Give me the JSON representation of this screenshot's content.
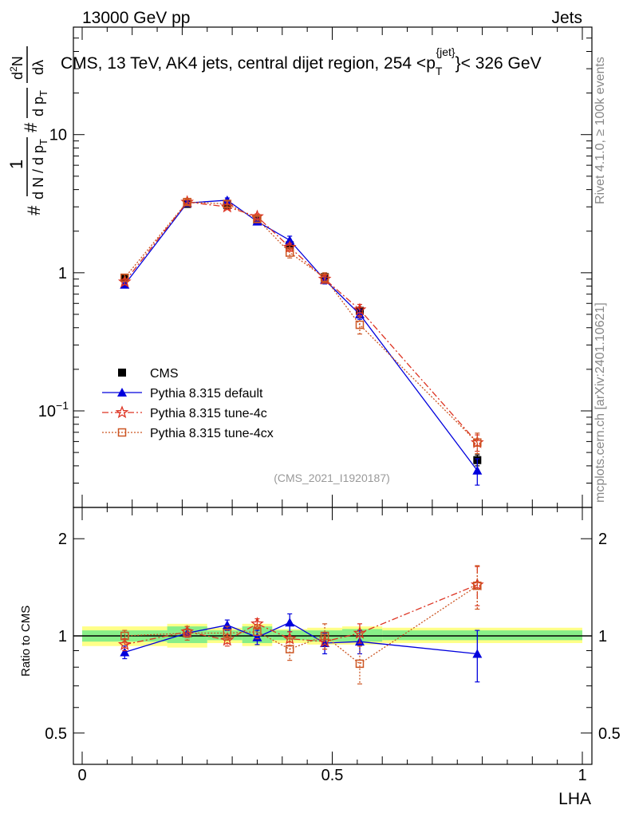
{
  "header": {
    "energy_label": "13000 GeV pp",
    "category_label": "Jets",
    "title_prefix": "CMS, 13 TeV, AK4 jets, central dijet region, 254 <p",
    "title_sub": "T",
    "title_sup": "{jet}",
    "title_suffix": "}< 326 GeV",
    "analysis_id": "(CMS_2021_I1920187)",
    "rivet_label": "Rivet 4.1.0, ≥ 100k events",
    "mcplots_label": "mcplots.cern.ch [arXiv:2401.10621]"
  },
  "colors": {
    "cms": "#000000",
    "default": "#0000dd",
    "tune4c": "#dd3322",
    "tune4cx": "#cc5522",
    "band_inner": "#88ee88",
    "band_outer": "#ffff88"
  },
  "chart_data": [
    {
      "type": "scatter",
      "name": "main",
      "yscale": "log",
      "xlim": [
        0,
        1
      ],
      "ylim": [
        0.02,
        60
      ],
      "ylabel_parts": [
        "#",
        "1",
        "d N / d p",
        "T",
        "#",
        "d p",
        "T",
        "d",
        "2",
        "N",
        "dλ"
      ],
      "y_ticks": [
        {
          "value": 0.1,
          "label": "10",
          "sup": "−1"
        },
        {
          "value": 1,
          "label": "1",
          "sup": ""
        },
        {
          "value": 10,
          "label": "10",
          "sup": ""
        }
      ],
      "x": [
        0.085,
        0.21,
        0.29,
        0.35,
        0.415,
        0.485,
        0.555,
        0.79
      ],
      "series": [
        {
          "name": "CMS",
          "key": "cms",
          "marker": "square",
          "line": "none",
          "values": [
            0.92,
            3.15,
            3.1,
            2.38,
            1.58,
            0.93,
            0.53,
            0.044
          ],
          "err_lo": [
            0.05,
            0.12,
            0.12,
            0.1,
            0.08,
            0.05,
            0.03,
            0.004
          ],
          "err_hi": [
            0.05,
            0.12,
            0.12,
            0.1,
            0.08,
            0.05,
            0.03,
            0.004
          ]
        },
        {
          "name": "Pythia 8.315 default",
          "key": "default",
          "marker": "triangle",
          "line": "solid",
          "values": [
            0.82,
            3.2,
            3.35,
            2.35,
            1.72,
            0.89,
            0.5,
            0.037
          ],
          "err_lo": [
            0.04,
            0.12,
            0.13,
            0.1,
            0.12,
            0.06,
            0.04,
            0.008
          ],
          "err_hi": [
            0.04,
            0.12,
            0.13,
            0.1,
            0.12,
            0.06,
            0.04,
            0.008
          ]
        },
        {
          "name": "Pythia 8.315 tune-4c",
          "key": "tune4c",
          "marker": "star",
          "line": "dashdot",
          "values": [
            0.86,
            3.25,
            3.0,
            2.55,
            1.53,
            0.9,
            0.54,
            0.059
          ],
          "err_lo": [
            0.04,
            0.12,
            0.12,
            0.12,
            0.1,
            0.06,
            0.05,
            0.008
          ],
          "err_hi": [
            0.04,
            0.12,
            0.12,
            0.12,
            0.1,
            0.06,
            0.05,
            0.008
          ]
        },
        {
          "name": "Pythia 8.315 tune-4cx",
          "key": "tune4cx",
          "marker": "open-square",
          "line": "dotted",
          "values": [
            0.92,
            3.25,
            3.15,
            2.45,
            1.4,
            0.92,
            0.42,
            0.059
          ],
          "err_lo": [
            0.05,
            0.15,
            0.15,
            0.12,
            0.12,
            0.08,
            0.06,
            0.01
          ],
          "err_hi": [
            0.05,
            0.15,
            0.15,
            0.12,
            0.12,
            0.08,
            0.06,
            0.01
          ]
        }
      ],
      "legend": {
        "position": "lower-left",
        "entries": [
          "CMS",
          "Pythia 8.315 default",
          "Pythia 8.315 tune-4c",
          "Pythia 8.315 tune-4cx"
        ]
      }
    },
    {
      "type": "scatter",
      "name": "ratio",
      "yscale": "log",
      "xlim": [
        0,
        1
      ],
      "ylim": [
        0.4,
        2.5
      ],
      "ylabel": "Ratio to CMS",
      "xlabel": "LHA",
      "y_ticks": [
        {
          "value": 0.5,
          "label": "0.5"
        },
        {
          "value": 1,
          "label": "1"
        },
        {
          "value": 2,
          "label": "2"
        }
      ],
      "x_ticks": [
        {
          "value": 0,
          "label": "0"
        },
        {
          "value": 0.5,
          "label": "0.5"
        },
        {
          "value": 1,
          "label": "1"
        }
      ],
      "bands": [
        {
          "x0": 0.0,
          "x1": 0.17,
          "inner": [
            0.96,
            1.04
          ],
          "outer": [
            0.93,
            1.07
          ]
        },
        {
          "x0": 0.17,
          "x1": 0.25,
          "inner": [
            0.95,
            1.07
          ],
          "outer": [
            0.92,
            1.09
          ]
        },
        {
          "x0": 0.25,
          "x1": 0.32,
          "inner": [
            0.97,
            1.04
          ],
          "outer": [
            0.95,
            1.06
          ]
        },
        {
          "x0": 0.32,
          "x1": 0.38,
          "inner": [
            0.95,
            1.07
          ],
          "outer": [
            0.93,
            1.09
          ]
        },
        {
          "x0": 0.38,
          "x1": 0.45,
          "inner": [
            0.97,
            1.04
          ],
          "outer": [
            0.95,
            1.05
          ]
        },
        {
          "x0": 0.45,
          "x1": 0.52,
          "inner": [
            0.96,
            1.04
          ],
          "outer": [
            0.94,
            1.06
          ]
        },
        {
          "x0": 0.52,
          "x1": 0.6,
          "inner": [
            0.96,
            1.05
          ],
          "outer": [
            0.94,
            1.07
          ]
        },
        {
          "x0": 0.6,
          "x1": 1.0,
          "inner": [
            0.97,
            1.04
          ],
          "outer": [
            0.95,
            1.06
          ]
        }
      ],
      "series": [
        {
          "name": "Pythia 8.315 default",
          "key": "default",
          "marker": "triangle",
          "line": "solid",
          "values": [
            0.89,
            1.02,
            1.08,
            0.99,
            1.1,
            0.95,
            0.96,
            0.88
          ],
          "err_lo": [
            0.04,
            0.03,
            0.04,
            0.05,
            0.07,
            0.07,
            0.08,
            0.16
          ],
          "err_hi": [
            0.04,
            0.03,
            0.04,
            0.05,
            0.07,
            0.07,
            0.08,
            0.16
          ]
        },
        {
          "name": "Pythia 8.315 tune-4c",
          "key": "tune4c",
          "marker": "star",
          "line": "dashdot",
          "values": [
            0.94,
            1.03,
            0.97,
            1.09,
            0.98,
            0.96,
            1.02,
            1.44
          ],
          "err_lo": [
            0.04,
            0.04,
            0.04,
            0.04,
            0.05,
            0.05,
            0.07,
            0.2
          ],
          "err_hi": [
            0.04,
            0.04,
            0.04,
            0.04,
            0.05,
            0.05,
            0.07,
            0.2
          ]
        },
        {
          "name": "Pythia 8.315 tune-4cx",
          "key": "tune4cx",
          "marker": "open-square",
          "line": "dotted",
          "values": [
            1.0,
            1.02,
            1.02,
            1.03,
            0.91,
            1.0,
            0.82,
            1.43
          ],
          "err_lo": [
            0.04,
            0.05,
            0.05,
            0.05,
            0.07,
            0.09,
            0.11,
            0.22
          ],
          "err_hi": [
            0.04,
            0.05,
            0.05,
            0.05,
            0.07,
            0.09,
            0.11,
            0.22
          ]
        }
      ]
    }
  ]
}
